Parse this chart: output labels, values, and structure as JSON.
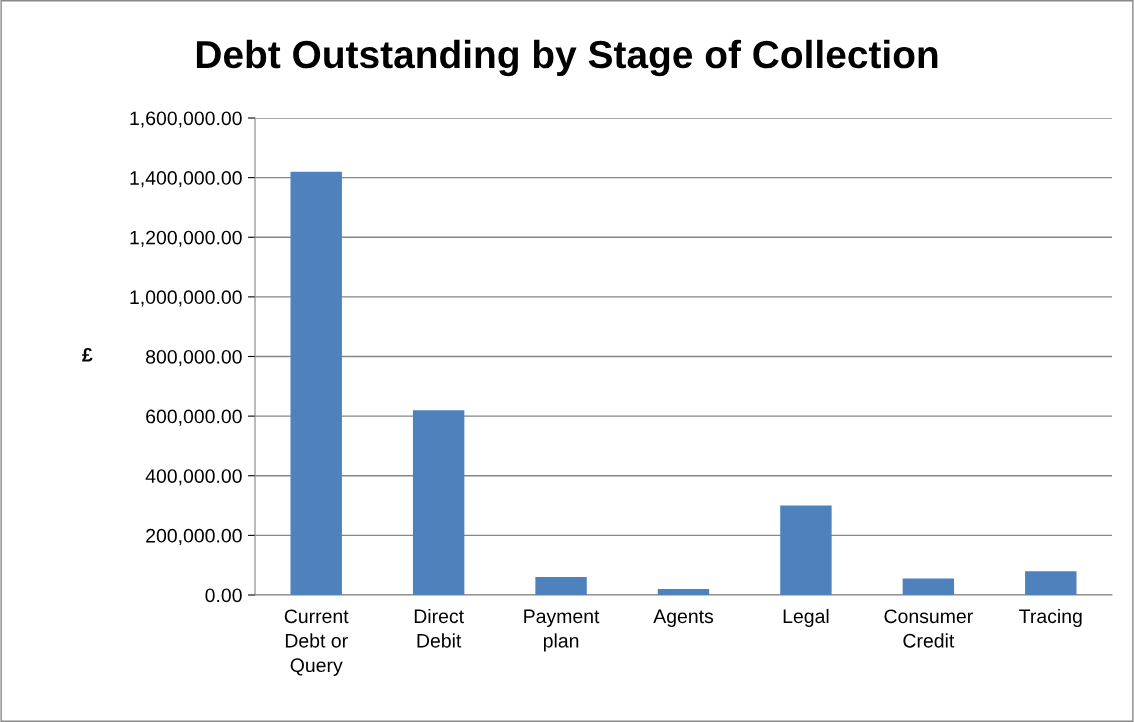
{
  "chart_data": {
    "type": "bar",
    "title": "Debt Outstanding by Stage of Collection",
    "ylabel": "£",
    "categories": [
      "Current Debt or Query",
      "Direct Debit",
      "Payment plan",
      "Agents",
      "Legal",
      "Consumer Credit",
      "Tracing"
    ],
    "values": [
      1420000,
      620000,
      60000,
      20000,
      300000,
      55000,
      80000
    ],
    "color": "#4f81bd",
    "ylim": [
      0,
      1600000
    ],
    "yticks": [
      {
        "value": 0,
        "label": "0.00"
      },
      {
        "value": 200000,
        "label": "200,000.00"
      },
      {
        "value": 400000,
        "label": "400,000.00"
      },
      {
        "value": 600000,
        "label": "600,000.00"
      },
      {
        "value": 800000,
        "label": "800,000.00"
      },
      {
        "value": 1000000,
        "label": "1,000,000.00"
      },
      {
        "value": 1200000,
        "label": "1,200,000.00"
      },
      {
        "value": 1400000,
        "label": "1,400,000.00"
      },
      {
        "value": 1600000,
        "label": "1,600,000.00"
      }
    ],
    "grid": "y"
  }
}
